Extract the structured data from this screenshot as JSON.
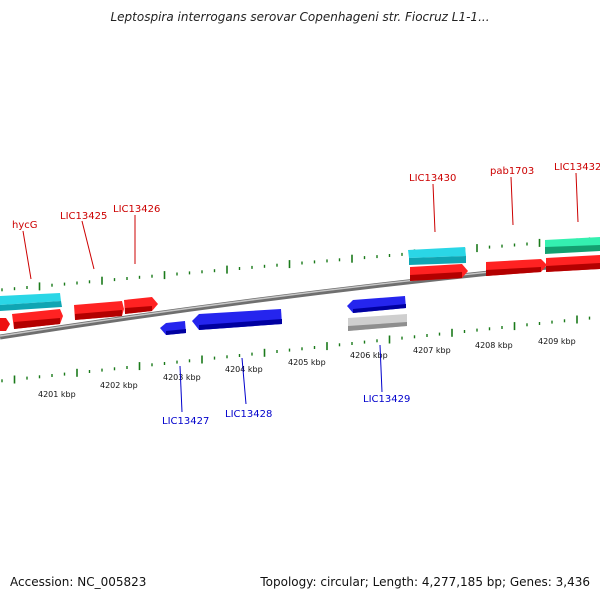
{
  "title": "Leptospira interrogans serovar Copenhageni str. Fiocruz L1-1...",
  "footer": {
    "accession": "Accession: NC_005823",
    "summary": "Topology: circular; Length: 4,277,185 bp; Genes: 3,436"
  },
  "colors": {
    "tick_major": "#1a7a1a",
    "tick_minor": "#2e8b2e",
    "backbone": "#8a8a8a",
    "label_top": "#cc0000",
    "label_bottom": "#0000cc",
    "cyan_gene": "#1ec8d8",
    "red_gene": "#ee1111",
    "blue_gene": "#1111dd",
    "green_gene": "#22e8a0",
    "gray_gene": "#bbbbbb"
  },
  "scale_labels": [
    "4201 kbp",
    "4202 kbp",
    "4203 kbp",
    "4204 kbp",
    "4205 kbp",
    "4206 kbp",
    "4207 kbp",
    "4208 kbp",
    "4209 kbp"
  ],
  "top_gene_labels": [
    "hycG",
    "LIC13425",
    "LIC13426",
    "LIC13430",
    "pab1703",
    "LIC13432"
  ],
  "bottom_gene_labels": [
    "LIC13427",
    "LIC13428",
    "LIC13429"
  ]
}
